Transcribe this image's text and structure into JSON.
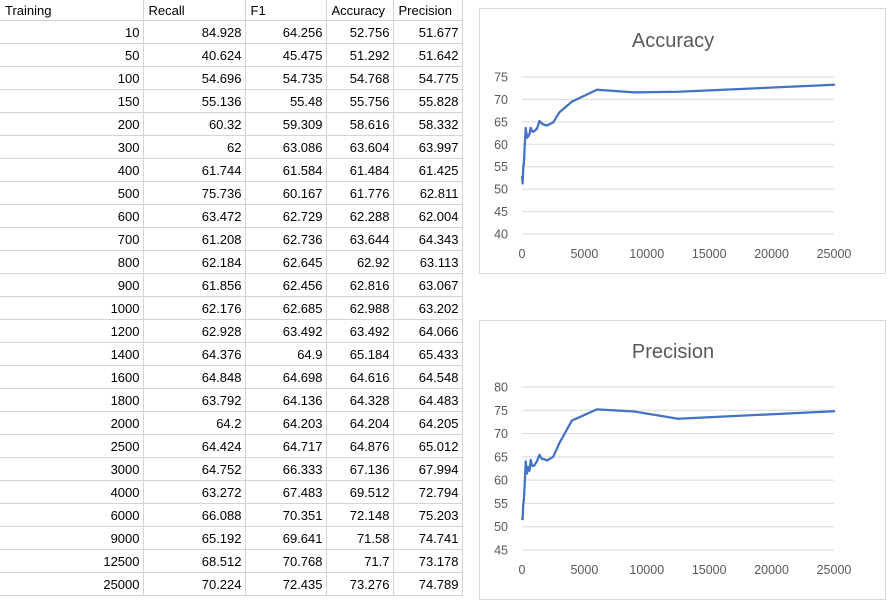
{
  "table": {
    "headers": [
      "Training",
      "Recall",
      "F1",
      "Accuracy",
      "Precision"
    ],
    "rows": [
      [
        "10",
        "84.928",
        "64.256",
        "52.756",
        "51.677"
      ],
      [
        "50",
        "40.624",
        "45.475",
        "51.292",
        "51.642"
      ],
      [
        "100",
        "54.696",
        "54.735",
        "54.768",
        "54.775"
      ],
      [
        "150",
        "55.136",
        "55.48",
        "55.756",
        "55.828"
      ],
      [
        "200",
        "60.32",
        "59.309",
        "58.616",
        "58.332"
      ],
      [
        "300",
        "62",
        "63.086",
        "63.604",
        "63.997"
      ],
      [
        "400",
        "61.744",
        "61.584",
        "61.484",
        "61.425"
      ],
      [
        "500",
        "75.736",
        "60.167",
        "61.776",
        "62.811"
      ],
      [
        "600",
        "63.472",
        "62.729",
        "62.288",
        "62.004"
      ],
      [
        "700",
        "61.208",
        "62.736",
        "63.644",
        "64.343"
      ],
      [
        "800",
        "62.184",
        "62.645",
        "62.92",
        "63.113"
      ],
      [
        "900",
        "61.856",
        "62.456",
        "62.816",
        "63.067"
      ],
      [
        "1000",
        "62.176",
        "62.685",
        "62.988",
        "63.202"
      ],
      [
        "1200",
        "62.928",
        "63.492",
        "63.492",
        "64.066"
      ],
      [
        "1400",
        "64.376",
        "64.9",
        "65.184",
        "65.433"
      ],
      [
        "1600",
        "64.848",
        "64.698",
        "64.616",
        "64.548"
      ],
      [
        "1800",
        "63.792",
        "64.136",
        "64.328",
        "64.483"
      ],
      [
        "2000",
        "64.2",
        "64.203",
        "64.204",
        "64.205"
      ],
      [
        "2500",
        "64.424",
        "64.717",
        "64.876",
        "65.012"
      ],
      [
        "3000",
        "64.752",
        "66.333",
        "67.136",
        "67.994"
      ],
      [
        "4000",
        "63.272",
        "67.483",
        "69.512",
        "72.794"
      ],
      [
        "6000",
        "66.088",
        "70.351",
        "72.148",
        "75.203"
      ],
      [
        "9000",
        "65.192",
        "69.641",
        "71.58",
        "74.741"
      ],
      [
        "12500",
        "68.512",
        "70.768",
        "71.7",
        "73.178"
      ],
      [
        "25000",
        "70.224",
        "72.435",
        "73.276",
        "74.789"
      ]
    ]
  },
  "chart_data": [
    {
      "type": "line",
      "title": "Accuracy",
      "xlabel": "",
      "ylabel": "",
      "x": [
        10,
        50,
        100,
        150,
        200,
        300,
        400,
        500,
        600,
        700,
        800,
        900,
        1000,
        1200,
        1400,
        1600,
        1800,
        2000,
        2500,
        3000,
        4000,
        6000,
        9000,
        12500,
        25000
      ],
      "series": [
        {
          "values": [
            52.756,
            51.292,
            54.768,
            55.756,
            58.616,
            63.604,
            61.484,
            61.776,
            62.288,
            63.644,
            62.92,
            62.816,
            62.988,
            63.492,
            65.184,
            64.616,
            64.328,
            64.204,
            64.876,
            67.136,
            69.512,
            72.148,
            71.58,
            71.7,
            73.276
          ]
        }
      ],
      "xlim": [
        0,
        25000
      ],
      "xticks": [
        "0",
        "5000",
        "10000",
        "15000",
        "20000",
        "25000"
      ],
      "ylim": [
        40,
        75
      ],
      "yticks": [
        "40",
        "45",
        "50",
        "55",
        "60",
        "65",
        "70",
        "75"
      ],
      "grid": true,
      "legend": "none",
      "line_color": "#4472c4"
    },
    {
      "type": "line",
      "title": "Precision",
      "xlabel": "",
      "ylabel": "",
      "x": [
        10,
        50,
        100,
        150,
        200,
        300,
        400,
        500,
        600,
        700,
        800,
        900,
        1000,
        1200,
        1400,
        1600,
        1800,
        2000,
        2500,
        3000,
        4000,
        6000,
        9000,
        12500,
        25000
      ],
      "series": [
        {
          "values": [
            51.677,
            51.642,
            54.775,
            55.828,
            58.332,
            63.997,
            61.425,
            62.811,
            62.004,
            64.343,
            63.113,
            63.067,
            63.202,
            64.066,
            65.433,
            64.548,
            64.483,
            64.205,
            65.012,
            67.994,
            72.794,
            75.203,
            74.741,
            73.178,
            74.789
          ]
        }
      ],
      "xlim": [
        0,
        25000
      ],
      "xticks": [
        "0",
        "5000",
        "10000",
        "15000",
        "20000",
        "25000"
      ],
      "ylim": [
        45,
        80
      ],
      "yticks": [
        "45",
        "50",
        "55",
        "60",
        "65",
        "70",
        "75",
        "80"
      ],
      "grid": true,
      "legend": "none",
      "line_color": "#4472c4"
    }
  ]
}
